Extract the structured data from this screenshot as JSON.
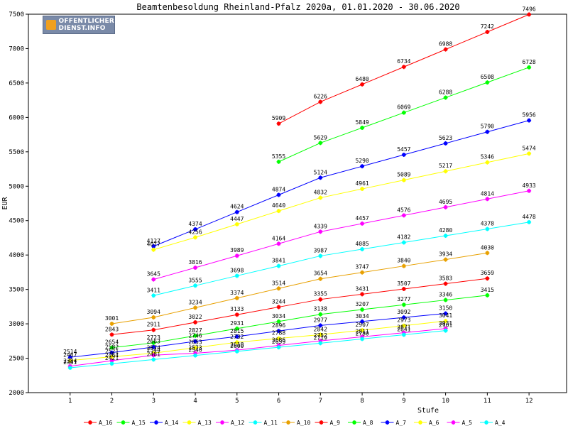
{
  "chart_data": {
    "type": "line",
    "title": "Beamtenbesoldung Rheinland-Pfalz 2020a, 01.01.2020 - 30.06.2020",
    "xlabel": "Stufe",
    "ylabel": "EUR",
    "x_ticks": [
      "1",
      "2",
      "3",
      "4",
      "5",
      "6",
      "7",
      "8",
      "9",
      "10",
      "11",
      "12"
    ],
    "y_ticks": [
      "2000",
      "2500",
      "3000",
      "3500",
      "4000",
      "4500",
      "5000",
      "5500",
      "6000",
      "6500",
      "7000",
      "7500"
    ],
    "xlim": [
      0,
      12.9
    ],
    "ylim": [
      2000,
      7500
    ],
    "grid": false,
    "legend_position": "bottom",
    "series": [
      {
        "name": "A_16",
        "color": "#ff0000",
        "x": [
          6,
          7,
          8,
          9,
          10,
          11,
          12
        ],
        "values": [
          5909,
          6226,
          6480,
          6734,
          6988,
          7242,
          7496
        ]
      },
      {
        "name": "A_15",
        "color": "#00ff00",
        "x": [
          6,
          7,
          8,
          9,
          10,
          11,
          12
        ],
        "values": [
          5355,
          5629,
          5849,
          6069,
          6288,
          6508,
          6728
        ]
      },
      {
        "name": "A_14",
        "color": "#0000ff",
        "x": [
          3,
          4,
          5,
          6,
          7,
          8,
          9,
          10,
          11,
          12
        ],
        "values": [
          4127,
          4374,
          4624,
          4874,
          5124,
          5290,
          5457,
          5623,
          5790,
          5956
        ]
      },
      {
        "name": "A_13",
        "color": "#ffff00",
        "x": [
          3,
          4,
          5,
          6,
          7,
          8,
          9,
          10,
          11,
          12
        ],
        "values": [
          4077,
          4256,
          4447,
          4640,
          4832,
          4961,
          5089,
          5217,
          5346,
          5474
        ]
      },
      {
        "name": "A_12",
        "color": "#ff00ff",
        "x": [
          3,
          4,
          5,
          6,
          7,
          8,
          9,
          10,
          11,
          12
        ],
        "values": [
          3645,
          3816,
          3989,
          4164,
          4339,
          4457,
          4576,
          4695,
          4814,
          4933
        ]
      },
      {
        "name": "A_11",
        "color": "#00ffff",
        "x": [
          3,
          4,
          5,
          6,
          7,
          8,
          9,
          10,
          11,
          12
        ],
        "values": [
          3411,
          3555,
          3698,
          3841,
          3987,
          4085,
          4182,
          4280,
          4378,
          4478
        ]
      },
      {
        "name": "A_10",
        "color": "#e8a000",
        "x": [
          2,
          3,
          4,
          5,
          6,
          7,
          8,
          9,
          10,
          11
        ],
        "values": [
          3001,
          3094,
          3234,
          3374,
          3514,
          3654,
          3747,
          3840,
          3934,
          4030
        ]
      },
      {
        "name": "A_9",
        "color": "#ff0000",
        "x": [
          2,
          3,
          4,
          5,
          6,
          7,
          8,
          9,
          10,
          11
        ],
        "values": [
          2843,
          2911,
          3022,
          3133,
          3244,
          3355,
          3431,
          3507,
          3583,
          3659
        ]
      },
      {
        "name": "A_8",
        "color": "#00ff00",
        "x": [
          2,
          3,
          4,
          5,
          6,
          7,
          8,
          9,
          10,
          11
        ],
        "values": [
          2654,
          2723,
          2827,
          2931,
          3034,
          3138,
          3207,
          3277,
          3346,
          3415
        ]
      },
      {
        "name": "A_7",
        "color": "#0000ff",
        "x": [
          1,
          2,
          3,
          4,
          5,
          6,
          7,
          8,
          9,
          10
        ],
        "values": [
          2514,
          2582,
          2663,
          2746,
          2815,
          2896,
          2977,
          3034,
          3092,
          3150
        ]
      },
      {
        "name": "A_6",
        "color": "#ffff00",
        "x": [
          1,
          2,
          3,
          4,
          5,
          6,
          7,
          8,
          9,
          10
        ],
        "values": [
          2467,
          2521,
          2574,
          2653,
          2732,
          2788,
          2842,
          2907,
          2973,
          3041
        ]
      },
      {
        "name": "A_5",
        "color": "#ff00ff",
        "x": [
          1,
          2,
          3,
          4,
          5,
          6,
          7,
          8,
          9,
          10
        ],
        "values": [
          2384,
          2464,
          2544,
          2573,
          2618,
          2686,
          2752,
          2811,
          2871,
          2931
        ]
      },
      {
        "name": "A_4",
        "color": "#00ffff",
        "x": [
          1,
          2,
          3,
          4,
          5,
          6,
          7,
          8,
          9,
          10
        ],
        "values": [
          2361,
          2421,
          2481,
          2540,
          2600,
          2659,
          2719,
          2780,
          2841,
          2901
        ]
      }
    ]
  },
  "logo": {
    "line1": "OFFENTLICHER",
    "line2": "DIENST.INFO"
  }
}
